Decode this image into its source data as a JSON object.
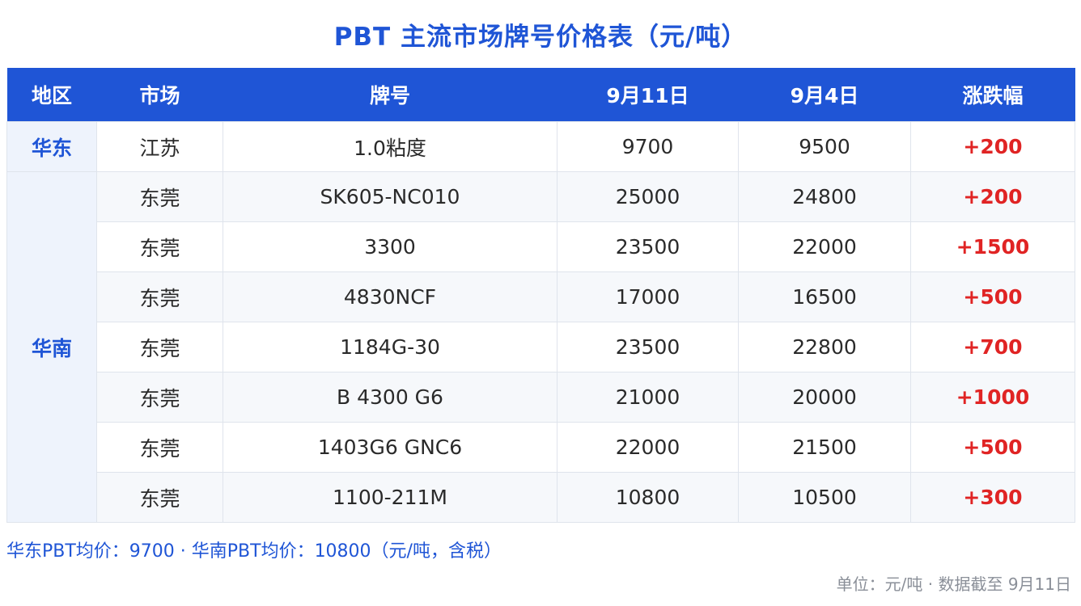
{
  "title": "PBT 主流市场牌号价格表（元/吨）",
  "headers": {
    "region": "地区",
    "market": "市场",
    "grade": "牌号",
    "date1": "9月11日",
    "date2": "9月4日",
    "change": "涨跌幅"
  },
  "rows": [
    {
      "region": "华东",
      "market": "江苏",
      "grade": "1.0粘度",
      "price1": "9700",
      "price2": "9500",
      "change": "+200"
    },
    {
      "region": "华南",
      "market": "东莞",
      "grade": "SK605-NC010",
      "price1": "25000",
      "price2": "24800",
      "change": "+200"
    },
    {
      "market": "东莞",
      "grade": "3300",
      "price1": "23500",
      "price2": "22000",
      "change": "+1500"
    },
    {
      "market": "东莞",
      "grade": "4830NCF",
      "price1": "17000",
      "price2": "16500",
      "change": "+500"
    },
    {
      "market": "东莞",
      "grade": "1184G-30",
      "price1": "23500",
      "price2": "22800",
      "change": "+700"
    },
    {
      "market": "东莞",
      "grade": "B 4300 G6",
      "price1": "21000",
      "price2": "20000",
      "change": "+1000"
    },
    {
      "market": "东莞",
      "grade": "1403G6 GNC6",
      "price1": "22000",
      "price2": "21500",
      "change": "+500"
    },
    {
      "market": "东莞",
      "grade": "1100-211M",
      "price1": "10800",
      "price2": "10500",
      "change": "+300"
    }
  ],
  "footnote": "华东PBT均价：9700 · 华南PBT均价：10800（元/吨，含税）",
  "unit_note": "单位：元/吨 · 数据截至 9月11日",
  "colors": {
    "accent": "#1f55d6",
    "increase": "#e02424",
    "muted": "#8a8f98"
  }
}
